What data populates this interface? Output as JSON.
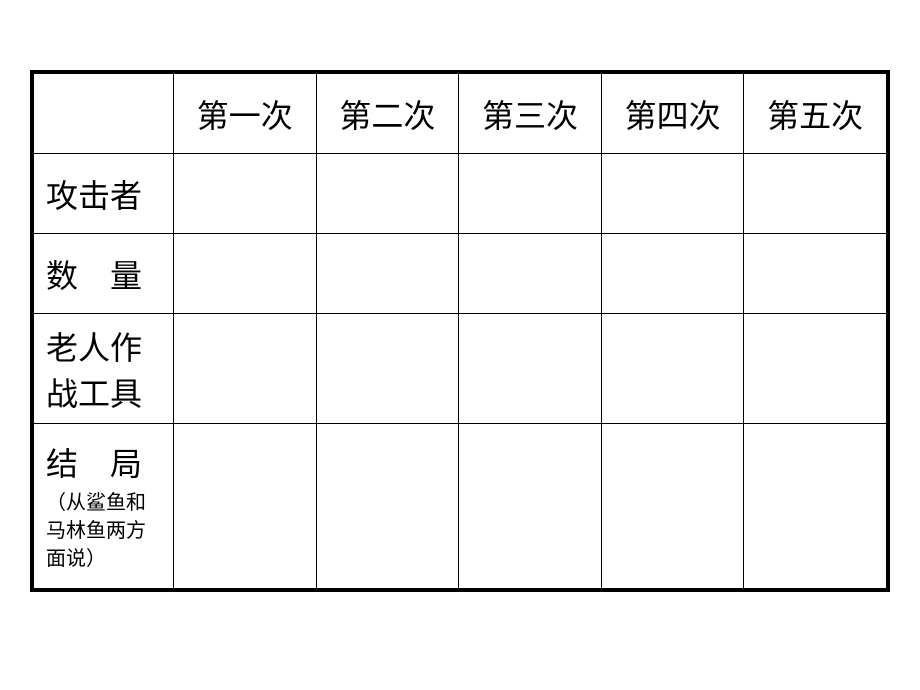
{
  "table": {
    "columns": [
      "",
      "第一次",
      "第二次",
      "第三次",
      "第四次",
      "第五次"
    ],
    "rows": [
      {
        "label": "攻击者",
        "sublabel": "",
        "cells": [
          "",
          "",
          "",
          "",
          ""
        ],
        "height": "normal",
        "spaced": false
      },
      {
        "label": "数　量",
        "sublabel": "",
        "cells": [
          "",
          "",
          "",
          "",
          ""
        ],
        "height": "normal",
        "spaced": false
      },
      {
        "label": "老人作战工具",
        "sublabel": "",
        "cells": [
          "",
          "",
          "",
          "",
          ""
        ],
        "height": "tall",
        "spaced": false
      },
      {
        "label": "结　局",
        "sublabel": "（从鲨鱼和马林鱼两方面说）",
        "cells": [
          "",
          "",
          "",
          "",
          ""
        ],
        "height": "last",
        "spaced": false
      }
    ],
    "styling": {
      "border_color": "#000000",
      "outer_border_width": 3,
      "inner_border_width": 1,
      "background_color": "#ffffff",
      "header_fontsize": 32,
      "label_fontsize": 32,
      "sublabel_fontsize": 20,
      "font_family": "SimSun",
      "first_col_width": 140
    }
  }
}
